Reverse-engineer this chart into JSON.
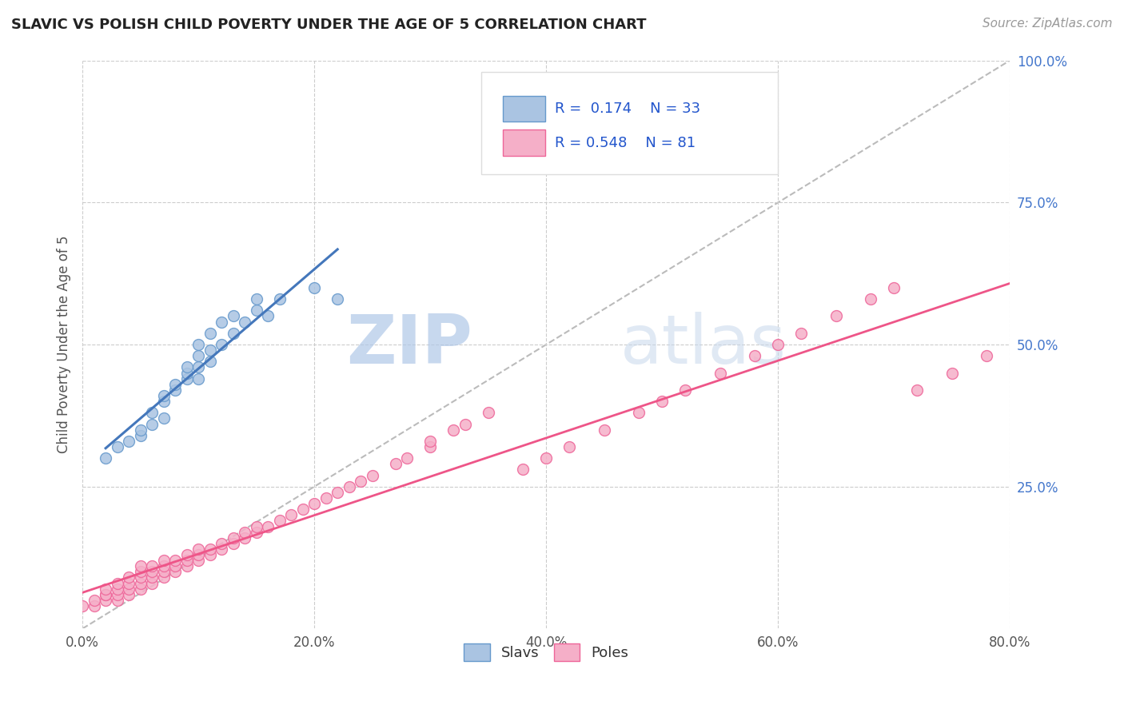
{
  "title": "SLAVIC VS POLISH CHILD POVERTY UNDER THE AGE OF 5 CORRELATION CHART",
  "source": "Source: ZipAtlas.com",
  "ylabel": "Child Poverty Under the Age of 5",
  "xlim": [
    0.0,
    0.8
  ],
  "ylim": [
    0.0,
    1.0
  ],
  "xticks": [
    0.0,
    0.2,
    0.4,
    0.6,
    0.8
  ],
  "xtick_labels": [
    "0.0%",
    "20.0%",
    "40.0%",
    "60.0%",
    "80.0%"
  ],
  "yticks": [
    0.25,
    0.5,
    0.75,
    1.0
  ],
  "ytick_labels": [
    "25.0%",
    "50.0%",
    "75.0%",
    "100.0%"
  ],
  "slavic_color": "#aac4e2",
  "polish_color": "#f5afc8",
  "slavic_edge_color": "#6699cc",
  "polish_edge_color": "#ee6699",
  "slavic_line_color": "#4477bb",
  "polish_line_color": "#ee5588",
  "trend_line_color": "#bbbbbb",
  "R_slavic": 0.174,
  "N_slavic": 33,
  "R_polish": 0.548,
  "N_polish": 81,
  "watermark_zip": "ZIP",
  "watermark_atlas": "atlas",
  "legend_label_slavic": "Slavs",
  "legend_label_polish": "Poles",
  "slavic_x": [
    0.02,
    0.03,
    0.04,
    0.05,
    0.05,
    0.06,
    0.06,
    0.07,
    0.07,
    0.07,
    0.08,
    0.08,
    0.09,
    0.09,
    0.09,
    0.1,
    0.1,
    0.1,
    0.1,
    0.11,
    0.11,
    0.11,
    0.12,
    0.12,
    0.13,
    0.13,
    0.14,
    0.15,
    0.15,
    0.16,
    0.17,
    0.2,
    0.22
  ],
  "slavic_y": [
    0.3,
    0.32,
    0.33,
    0.34,
    0.35,
    0.36,
    0.38,
    0.37,
    0.4,
    0.41,
    0.42,
    0.43,
    0.44,
    0.45,
    0.46,
    0.44,
    0.46,
    0.48,
    0.5,
    0.47,
    0.49,
    0.52,
    0.5,
    0.54,
    0.52,
    0.55,
    0.54,
    0.56,
    0.58,
    0.55,
    0.58,
    0.6,
    0.58
  ],
  "polish_x": [
    0.0,
    0.01,
    0.01,
    0.02,
    0.02,
    0.02,
    0.02,
    0.03,
    0.03,
    0.03,
    0.03,
    0.04,
    0.04,
    0.04,
    0.04,
    0.05,
    0.05,
    0.05,
    0.05,
    0.05,
    0.06,
    0.06,
    0.06,
    0.06,
    0.07,
    0.07,
    0.07,
    0.07,
    0.08,
    0.08,
    0.08,
    0.09,
    0.09,
    0.09,
    0.1,
    0.1,
    0.1,
    0.11,
    0.11,
    0.12,
    0.12,
    0.13,
    0.13,
    0.14,
    0.14,
    0.15,
    0.15,
    0.16,
    0.17,
    0.18,
    0.19,
    0.2,
    0.21,
    0.22,
    0.23,
    0.24,
    0.25,
    0.27,
    0.28,
    0.3,
    0.3,
    0.32,
    0.33,
    0.35,
    0.38,
    0.4,
    0.42,
    0.45,
    0.48,
    0.5,
    0.52,
    0.55,
    0.58,
    0.6,
    0.62,
    0.65,
    0.68,
    0.7,
    0.72,
    0.75,
    0.78
  ],
  "polish_y": [
    0.04,
    0.04,
    0.05,
    0.05,
    0.06,
    0.06,
    0.07,
    0.05,
    0.06,
    0.07,
    0.08,
    0.06,
    0.07,
    0.08,
    0.09,
    0.07,
    0.08,
    0.09,
    0.1,
    0.11,
    0.08,
    0.09,
    0.1,
    0.11,
    0.09,
    0.1,
    0.11,
    0.12,
    0.1,
    0.11,
    0.12,
    0.11,
    0.12,
    0.13,
    0.12,
    0.13,
    0.14,
    0.13,
    0.14,
    0.14,
    0.15,
    0.15,
    0.16,
    0.16,
    0.17,
    0.17,
    0.18,
    0.18,
    0.19,
    0.2,
    0.21,
    0.22,
    0.23,
    0.24,
    0.25,
    0.26,
    0.27,
    0.29,
    0.3,
    0.32,
    0.33,
    0.35,
    0.36,
    0.38,
    0.28,
    0.3,
    0.32,
    0.35,
    0.38,
    0.4,
    0.42,
    0.45,
    0.48,
    0.5,
    0.52,
    0.55,
    0.58,
    0.6,
    0.42,
    0.45,
    0.48
  ]
}
